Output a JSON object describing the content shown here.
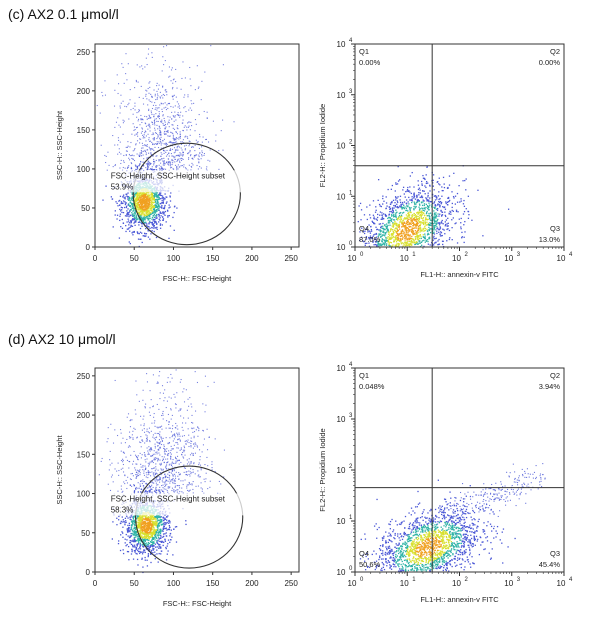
{
  "panels": [
    {
      "label": "(c) AX2 0.1 μmol/l"
    },
    {
      "label": "(d) AX2 10 μmol/l"
    }
  ],
  "chart_data": [
    {
      "type": "scatter",
      "panel": "c",
      "plot": "fsc-ssc",
      "xlabel": "FSC-H:: FSC-Height",
      "ylabel": "SSC-H:: SSC-Height",
      "xlim": [
        0,
        260
      ],
      "ylim": [
        0,
        260
      ],
      "xticks": [
        0,
        50,
        100,
        150,
        200,
        250
      ],
      "yticks": [
        0,
        50,
        100,
        150,
        200,
        250
      ],
      "gate": {
        "label": "FSC-Height, SSC-Height subset",
        "percent": "53.9%"
      },
      "cloud": {
        "center": [
          62,
          58
        ],
        "spread": [
          22,
          45
        ]
      }
    },
    {
      "type": "scatter",
      "panel": "c",
      "plot": "annexin-pi",
      "xlabel": "FL1-H:: annexin-v FITC",
      "ylabel": "FL2-H:: Propidium Iodide",
      "xscale": "log",
      "yscale": "log",
      "xlim": [
        1,
        10000
      ],
      "ylim": [
        1,
        10000
      ],
      "quadrant_x": 30,
      "quadrant_y": 40,
      "quadrants": {
        "Q1": "0.00%",
        "Q2": "0.00%",
        "Q3": "13.0%",
        "Q4": "87.0%"
      },
      "cloud": {
        "center_log": [
          1.0,
          0.35
        ],
        "spread_log": [
          0.45,
          0.4
        ]
      }
    },
    {
      "type": "scatter",
      "panel": "d",
      "plot": "fsc-ssc",
      "xlabel": "FSC-H:: FSC-Height",
      "ylabel": "SSC-H:: SSC-Height",
      "xlim": [
        0,
        260
      ],
      "ylim": [
        0,
        260
      ],
      "xticks": [
        0,
        50,
        100,
        150,
        200,
        250
      ],
      "yticks": [
        0,
        50,
        100,
        150,
        200,
        250
      ],
      "gate": {
        "label": "FSC-Height, SSC-Height subset",
        "percent": "58.3%"
      },
      "cloud": {
        "center": [
          65,
          60
        ],
        "spread": [
          22,
          45
        ]
      }
    },
    {
      "type": "scatter",
      "panel": "d",
      "plot": "annexin-pi",
      "xlabel": "FL1-H:: annexin-v FITC",
      "ylabel": "FL2-H:: Propidium Iodide",
      "xscale": "log",
      "yscale": "log",
      "xlim": [
        1,
        10000
      ],
      "ylim": [
        1,
        10000
      ],
      "quadrant_x": 30,
      "quadrant_y": 45,
      "quadrants": {
        "Q1": "0.048%",
        "Q2": "3.94%",
        "Q3": "45.4%",
        "Q4": "50.6%"
      },
      "cloud": {
        "center_log": [
          1.4,
          0.5
        ],
        "spread_log": [
          0.5,
          0.35
        ]
      }
    }
  ],
  "colors": {
    "sparse": "#4a57d6",
    "mid": "#2fb3a6",
    "dense": "#d8e030",
    "core": "#f0a020",
    "frame": "#333333",
    "gate_fill": "#ffffff"
  }
}
